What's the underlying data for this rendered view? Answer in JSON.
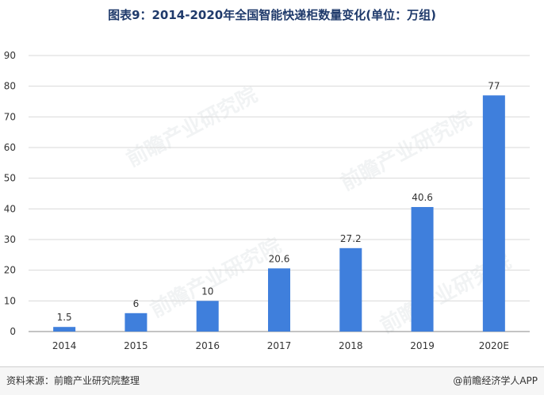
{
  "title": "图表9：2014-2020年全国智能快递柜数量变化(单位：万组)",
  "source": "资料来源：前瞻产业研究院整理",
  "credit": "@前瞻经济学人APP",
  "watermark_text": "前瞻产业研究院",
  "colors": {
    "bar": "#3f7fdc",
    "grid": "#d9d9d9",
    "axis": "#888888",
    "text": "#333333"
  },
  "chart_data": {
    "type": "bar",
    "title": "图表9：2014-2020年全国智能快递柜数量变化(单位：万组)",
    "categories": [
      "2014",
      "2015",
      "2016",
      "2017",
      "2018",
      "2019",
      "2020E"
    ],
    "values": [
      1.5,
      6,
      10,
      20.6,
      27.2,
      40.6,
      77
    ],
    "data_labels": [
      "1.5",
      "6",
      "10",
      "20.6",
      "27.2",
      "40.6",
      "77"
    ],
    "ylim": [
      0,
      90
    ],
    "yticks": [
      0,
      10,
      20,
      30,
      40,
      50,
      60,
      70,
      80,
      90
    ],
    "grid": true,
    "legend": "none"
  }
}
